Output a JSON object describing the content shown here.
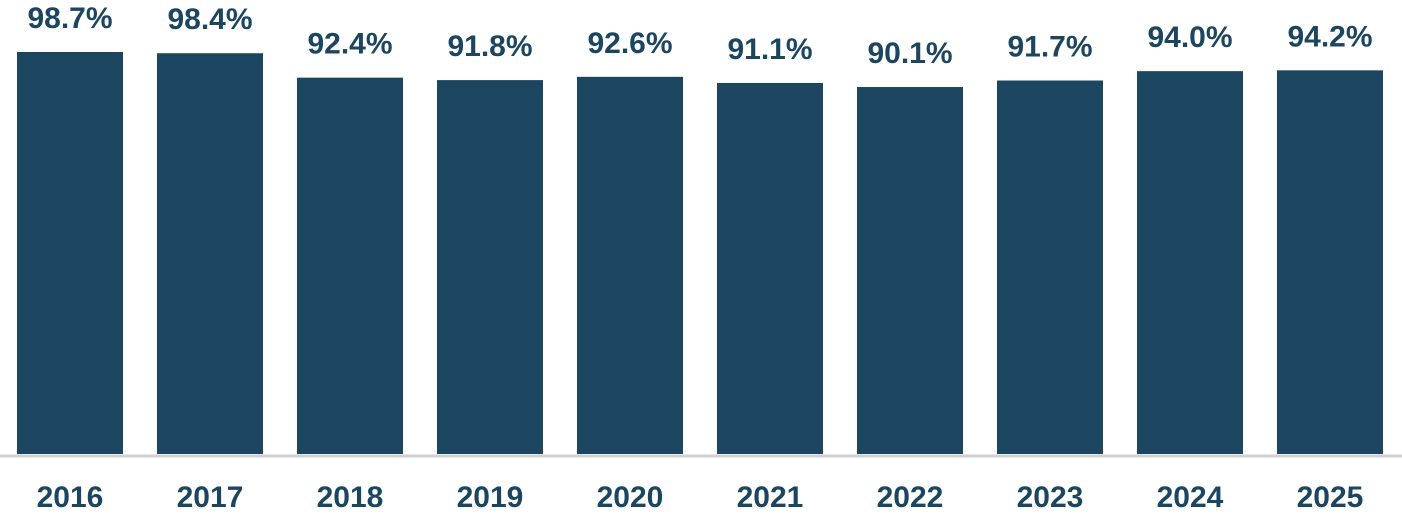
{
  "chart_data": {
    "type": "bar",
    "categories": [
      "2016",
      "2017",
      "2018",
      "2019",
      "2020",
      "2021",
      "2022",
      "2023",
      "2024",
      "2025"
    ],
    "values": [
      98.7,
      98.4,
      92.4,
      91.8,
      92.6,
      91.1,
      90.1,
      91.7,
      94.0,
      94.2
    ],
    "value_labels": [
      "98.7%",
      "98.4%",
      "92.4%",
      "91.8%",
      "92.6%",
      "91.1%",
      "90.1%",
      "91.7%",
      "94.0%",
      "94.2%"
    ],
    "color": "#1c4660"
  }
}
